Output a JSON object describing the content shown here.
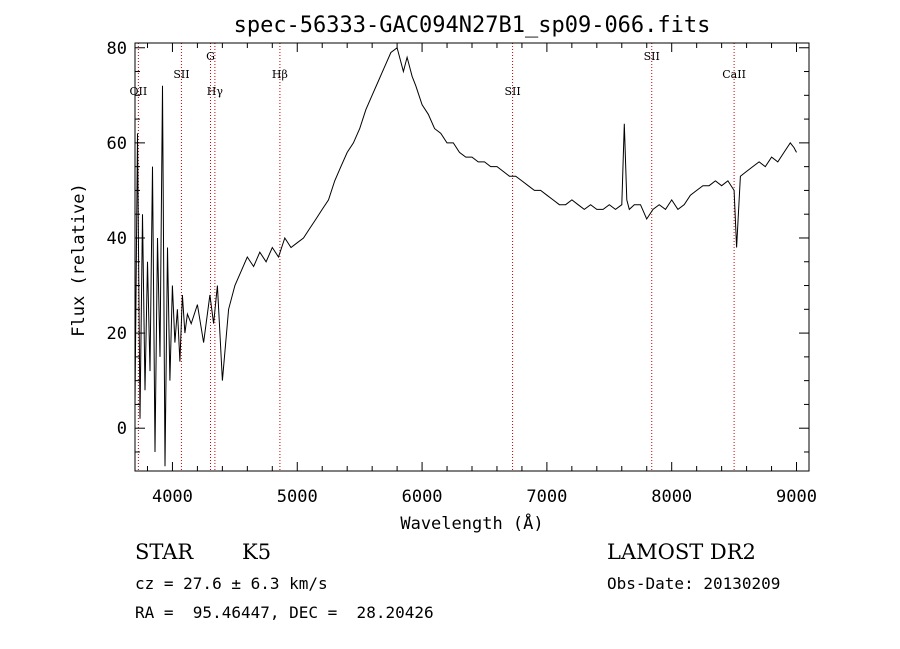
{
  "chart_data": {
    "type": "line",
    "title": "spec-56333-GAC094N27B1_sp09-066.fits",
    "xlabel": "Wavelength (Å)",
    "ylabel": "Flux (relative)",
    "xlim": [
      3700,
      9100
    ],
    "ylim": [
      -9,
      81
    ],
    "x_ticks": [
      4000,
      5000,
      6000,
      7000,
      8000,
      9000
    ],
    "y_ticks": [
      0,
      20,
      40,
      60,
      80
    ],
    "grid": false,
    "series_color": "#000000",
    "line_color": "#cc0000",
    "series": [
      {
        "x": [
          3700,
          3720,
          3740,
          3760,
          3780,
          3800,
          3820,
          3840,
          3860,
          3880,
          3900,
          3920,
          3940,
          3960,
          3980,
          4000,
          4020,
          4040,
          4060,
          4080,
          4100,
          4120,
          4150,
          4200,
          4250,
          4300,
          4330,
          4360,
          4400,
          4450,
          4500,
          4550,
          4600,
          4650,
          4700,
          4750,
          4800,
          4850,
          4900,
          4950,
          5000,
          5050,
          5100,
          5150,
          5200,
          5250,
          5300,
          5350,
          5400,
          5450,
          5500,
          5550,
          5600,
          5650,
          5700,
          5750,
          5800,
          5850,
          5880,
          5920,
          5950,
          6000,
          6050,
          6100,
          6150,
          6200,
          6250,
          6300,
          6350,
          6400,
          6450,
          6500,
          6550,
          6600,
          6650,
          6700,
          6750,
          6800,
          6850,
          6900,
          6950,
          7000,
          7050,
          7100,
          7150,
          7200,
          7250,
          7300,
          7350,
          7400,
          7450,
          7500,
          7550,
          7600,
          7620,
          7640,
          7660,
          7700,
          7750,
          7800,
          7850,
          7900,
          7950,
          8000,
          8050,
          8100,
          8150,
          8200,
          8250,
          8300,
          8350,
          8400,
          8450,
          8500,
          8520,
          8550,
          8600,
          8650,
          8700,
          8750,
          8800,
          8850,
          8900,
          8950,
          8980,
          9000
        ],
        "y": [
          5,
          62,
          2,
          45,
          8,
          35,
          12,
          55,
          -5,
          40,
          15,
          72,
          -8,
          38,
          10,
          30,
          18,
          25,
          14,
          28,
          20,
          24,
          22,
          26,
          18,
          28,
          22,
          30,
          10,
          25,
          30,
          33,
          36,
          34,
          37,
          35,
          38,
          36,
          40,
          38,
          39,
          40,
          42,
          44,
          46,
          48,
          52,
          55,
          58,
          60,
          63,
          67,
          70,
          73,
          76,
          79,
          80,
          75,
          78,
          74,
          72,
          68,
          66,
          63,
          62,
          60,
          60,
          58,
          57,
          57,
          56,
          56,
          55,
          55,
          54,
          53,
          53,
          52,
          51,
          50,
          50,
          49,
          48,
          47,
          47,
          48,
          47,
          46,
          47,
          46,
          46,
          47,
          46,
          47,
          64,
          48,
          46,
          47,
          47,
          44,
          46,
          47,
          46,
          48,
          46,
          47,
          49,
          50,
          51,
          51,
          52,
          51,
          52,
          50,
          38,
          53,
          54,
          55,
          56,
          55,
          57,
          56,
          58,
          60,
          59,
          58
        ]
      }
    ],
    "line_markers": [
      {
        "label": "OII",
        "x": 3727,
        "label_row": "mid"
      },
      {
        "label": "SII",
        "x": 4072,
        "label_row": "upper"
      },
      {
        "label": "G",
        "x": 4305,
        "label_row": "top"
      },
      {
        "label": "Hγ",
        "x": 4340,
        "label_row": "mid"
      },
      {
        "label": "Hβ",
        "x": 4861,
        "label_row": "upper"
      },
      {
        "label": "SII",
        "x": 6725,
        "label_row": "mid"
      },
      {
        "label": "SII",
        "x": 7840,
        "label_row": "top"
      },
      {
        "label": "CaII",
        "x": 8500,
        "label_row": "upper"
      }
    ]
  },
  "info": {
    "object_type": "STAR",
    "subclass": "K5",
    "survey": "LAMOST DR2",
    "redshift_line": "cz = 27.6 ± 6.3 km/s",
    "obs_date_line": "Obs-Date: 20130209",
    "coords_line": "RA =  95.46447, DEC =  28.20426"
  }
}
